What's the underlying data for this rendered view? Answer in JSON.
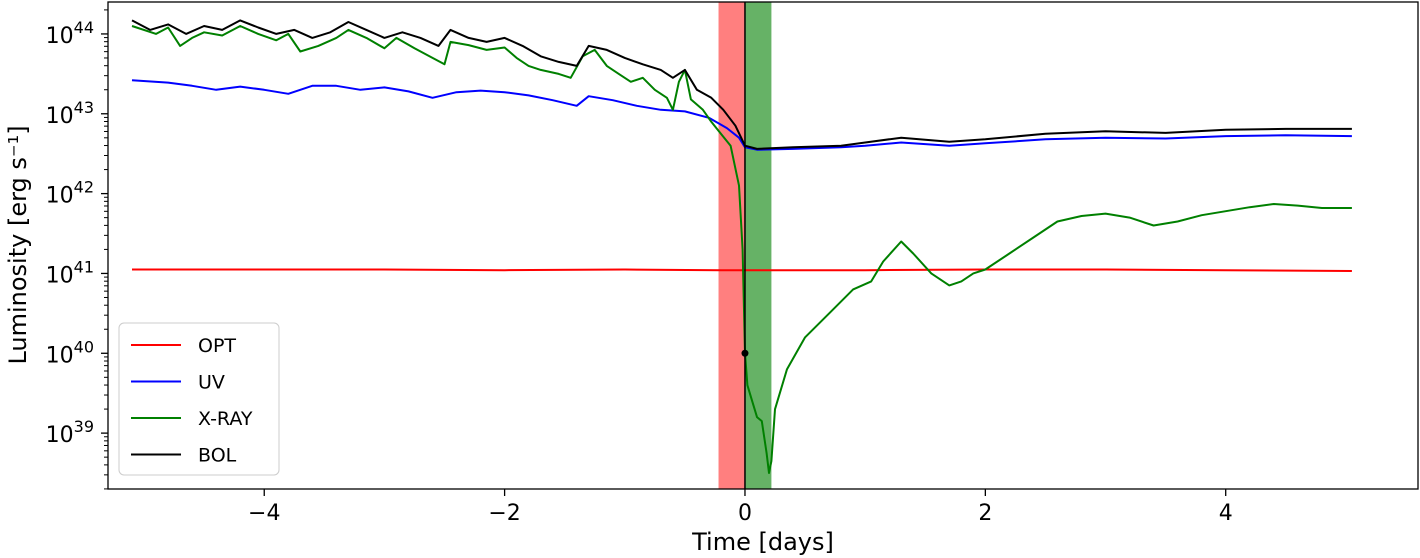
{
  "chart_data": {
    "type": "line",
    "title": "",
    "xlabel": "Time [days]",
    "ylabel": "Luminosity [erg s⁻¹]",
    "xlim": [
      -5.3,
      5.6
    ],
    "ylim_log10": [
      38.3,
      44.4
    ],
    "yscale": "log",
    "xticks": [
      {
        "value": -4,
        "label": "−4"
      },
      {
        "value": -2,
        "label": "−2"
      },
      {
        "value": 0,
        "label": "0"
      },
      {
        "value": 2,
        "label": "2"
      },
      {
        "value": 4,
        "label": "4"
      }
    ],
    "yticks": [
      {
        "log10": 39,
        "base": "10",
        "exp": "39"
      },
      {
        "log10": 40,
        "base": "10",
        "exp": "40"
      },
      {
        "log10": 41,
        "base": "10",
        "exp": "41"
      },
      {
        "log10": 42,
        "base": "10",
        "exp": "42"
      },
      {
        "log10": 43,
        "base": "10",
        "exp": "43"
      },
      {
        "log10": 44,
        "base": "10",
        "exp": "44"
      }
    ],
    "shaded_regions": [
      {
        "x0": -0.22,
        "x1": 0.0,
        "color": "#ff7f7f"
      },
      {
        "x0": 0.0,
        "x1": 0.22,
        "color": "#66b266"
      }
    ],
    "vline": {
      "x": 0.0,
      "color": "#000000"
    },
    "marker": {
      "x": 0.0,
      "log10_y": 40.0,
      "color": "#000000"
    },
    "legend": {
      "position": "lower-left",
      "entries": [
        "OPT",
        "UV",
        "X-RAY",
        "BOL"
      ]
    },
    "series": [
      {
        "name": "OPT",
        "color": "#ff0000",
        "log10_y": true,
        "points": [
          [
            -5.1,
            41.05
          ],
          [
            -4.0,
            41.05
          ],
          [
            -3.0,
            41.05
          ],
          [
            -2.0,
            41.04
          ],
          [
            -1.0,
            41.05
          ],
          [
            -0.2,
            41.04
          ],
          [
            0.0,
            41.04
          ],
          [
            1.0,
            41.04
          ],
          [
            2.0,
            41.05
          ],
          [
            3.0,
            41.05
          ],
          [
            4.0,
            41.04
          ],
          [
            5.05,
            41.03
          ]
        ]
      },
      {
        "name": "UV",
        "color": "#0000ff",
        "log10_y": true,
        "points": [
          [
            -5.1,
            43.42
          ],
          [
            -4.8,
            43.39
          ],
          [
            -4.6,
            43.35
          ],
          [
            -4.4,
            43.3
          ],
          [
            -4.2,
            43.34
          ],
          [
            -4.0,
            43.3
          ],
          [
            -3.8,
            43.25
          ],
          [
            -3.6,
            43.35
          ],
          [
            -3.4,
            43.35
          ],
          [
            -3.2,
            43.3
          ],
          [
            -3.0,
            43.33
          ],
          [
            -2.8,
            43.28
          ],
          [
            -2.6,
            43.2
          ],
          [
            -2.4,
            43.27
          ],
          [
            -2.2,
            43.29
          ],
          [
            -2.0,
            43.27
          ],
          [
            -1.8,
            43.23
          ],
          [
            -1.6,
            43.17
          ],
          [
            -1.4,
            43.1
          ],
          [
            -1.3,
            43.22
          ],
          [
            -1.1,
            43.17
          ],
          [
            -0.9,
            43.1
          ],
          [
            -0.7,
            43.05
          ],
          [
            -0.5,
            43.03
          ],
          [
            -0.3,
            42.95
          ],
          [
            -0.15,
            42.82
          ],
          [
            -0.05,
            42.7
          ],
          [
            0.0,
            42.58
          ],
          [
            0.1,
            42.55
          ],
          [
            0.4,
            42.56
          ],
          [
            0.8,
            42.58
          ],
          [
            1.0,
            42.6
          ],
          [
            1.3,
            42.64
          ],
          [
            1.7,
            42.6
          ],
          [
            2.0,
            42.63
          ],
          [
            2.5,
            42.68
          ],
          [
            3.0,
            42.7
          ],
          [
            3.5,
            42.69
          ],
          [
            4.0,
            42.72
          ],
          [
            4.5,
            42.73
          ],
          [
            5.05,
            42.72
          ]
        ]
      },
      {
        "name": "X-RAY",
        "color": "#008000",
        "log10_y": true,
        "points": [
          [
            -5.1,
            44.1
          ],
          [
            -4.9,
            44.0
          ],
          [
            -4.8,
            44.08
          ],
          [
            -4.7,
            43.85
          ],
          [
            -4.6,
            43.95
          ],
          [
            -4.5,
            44.02
          ],
          [
            -4.35,
            43.98
          ],
          [
            -4.2,
            44.1
          ],
          [
            -4.05,
            44.0
          ],
          [
            -3.9,
            43.92
          ],
          [
            -3.8,
            44.0
          ],
          [
            -3.7,
            43.78
          ],
          [
            -3.55,
            43.85
          ],
          [
            -3.4,
            43.95
          ],
          [
            -3.3,
            44.05
          ],
          [
            -3.15,
            43.95
          ],
          [
            -3.0,
            43.82
          ],
          [
            -2.9,
            43.95
          ],
          [
            -2.75,
            43.82
          ],
          [
            -2.6,
            43.7
          ],
          [
            -2.5,
            43.62
          ],
          [
            -2.45,
            43.9
          ],
          [
            -2.3,
            43.86
          ],
          [
            -2.15,
            43.8
          ],
          [
            -2.0,
            43.83
          ],
          [
            -1.9,
            43.7
          ],
          [
            -1.8,
            43.6
          ],
          [
            -1.7,
            43.55
          ],
          [
            -1.55,
            43.5
          ],
          [
            -1.45,
            43.45
          ],
          [
            -1.35,
            43.72
          ],
          [
            -1.25,
            43.8
          ],
          [
            -1.15,
            43.6
          ],
          [
            -1.05,
            43.5
          ],
          [
            -0.95,
            43.4
          ],
          [
            -0.85,
            43.45
          ],
          [
            -0.75,
            43.3
          ],
          [
            -0.65,
            43.2
          ],
          [
            -0.6,
            43.05
          ],
          [
            -0.55,
            43.4
          ],
          [
            -0.5,
            43.55
          ],
          [
            -0.45,
            43.18
          ],
          [
            -0.35,
            43.05
          ],
          [
            -0.28,
            42.9
          ],
          [
            -0.2,
            42.75
          ],
          [
            -0.12,
            42.6
          ],
          [
            -0.05,
            42.1
          ],
          [
            -0.02,
            41.3
          ],
          [
            0.0,
            40.0
          ],
          [
            0.02,
            39.6
          ],
          [
            0.06,
            39.4
          ],
          [
            0.1,
            39.2
          ],
          [
            0.14,
            39.15
          ],
          [
            0.18,
            38.75
          ],
          [
            0.2,
            38.5
          ],
          [
            0.22,
            38.65
          ],
          [
            0.25,
            39.3
          ],
          [
            0.35,
            39.8
          ],
          [
            0.5,
            40.2
          ],
          [
            0.7,
            40.5
          ],
          [
            0.9,
            40.8
          ],
          [
            1.05,
            40.9
          ],
          [
            1.15,
            41.15
          ],
          [
            1.3,
            41.4
          ],
          [
            1.4,
            41.25
          ],
          [
            1.55,
            41.0
          ],
          [
            1.7,
            40.85
          ],
          [
            1.8,
            40.9
          ],
          [
            1.9,
            41.0
          ],
          [
            2.0,
            41.05
          ],
          [
            2.2,
            41.25
          ],
          [
            2.4,
            41.45
          ],
          [
            2.6,
            41.65
          ],
          [
            2.8,
            41.72
          ],
          [
            3.0,
            41.75
          ],
          [
            3.2,
            41.7
          ],
          [
            3.4,
            41.6
          ],
          [
            3.6,
            41.65
          ],
          [
            3.8,
            41.73
          ],
          [
            4.0,
            41.78
          ],
          [
            4.2,
            41.83
          ],
          [
            4.4,
            41.87
          ],
          [
            4.6,
            41.85
          ],
          [
            4.8,
            41.82
          ],
          [
            5.05,
            41.82
          ]
        ]
      },
      {
        "name": "BOL",
        "color": "#000000",
        "log10_y": true,
        "points": [
          [
            -5.1,
            44.17
          ],
          [
            -4.95,
            44.05
          ],
          [
            -4.8,
            44.12
          ],
          [
            -4.65,
            44.0
          ],
          [
            -4.5,
            44.1
          ],
          [
            -4.35,
            44.05
          ],
          [
            -4.2,
            44.17
          ],
          [
            -4.05,
            44.08
          ],
          [
            -3.9,
            44.0
          ],
          [
            -3.75,
            44.05
          ],
          [
            -3.6,
            43.95
          ],
          [
            -3.45,
            44.02
          ],
          [
            -3.3,
            44.15
          ],
          [
            -3.15,
            44.05
          ],
          [
            -3.0,
            43.95
          ],
          [
            -2.85,
            44.02
          ],
          [
            -2.7,
            43.95
          ],
          [
            -2.55,
            43.85
          ],
          [
            -2.45,
            44.05
          ],
          [
            -2.3,
            43.95
          ],
          [
            -2.15,
            43.9
          ],
          [
            -2.0,
            43.95
          ],
          [
            -1.85,
            43.85
          ],
          [
            -1.7,
            43.72
          ],
          [
            -1.55,
            43.65
          ],
          [
            -1.4,
            43.6
          ],
          [
            -1.3,
            43.85
          ],
          [
            -1.15,
            43.8
          ],
          [
            -1.0,
            43.7
          ],
          [
            -0.85,
            43.62
          ],
          [
            -0.7,
            43.55
          ],
          [
            -0.6,
            43.45
          ],
          [
            -0.5,
            43.55
          ],
          [
            -0.4,
            43.3
          ],
          [
            -0.28,
            43.2
          ],
          [
            -0.18,
            43.05
          ],
          [
            -0.08,
            42.85
          ],
          [
            0.0,
            42.6
          ],
          [
            0.1,
            42.56
          ],
          [
            0.4,
            42.58
          ],
          [
            0.8,
            42.6
          ],
          [
            1.0,
            42.64
          ],
          [
            1.3,
            42.7
          ],
          [
            1.7,
            42.65
          ],
          [
            2.0,
            42.68
          ],
          [
            2.5,
            42.75
          ],
          [
            3.0,
            42.78
          ],
          [
            3.5,
            42.76
          ],
          [
            4.0,
            42.8
          ],
          [
            4.5,
            42.81
          ],
          [
            5.05,
            42.81
          ]
        ]
      }
    ]
  }
}
